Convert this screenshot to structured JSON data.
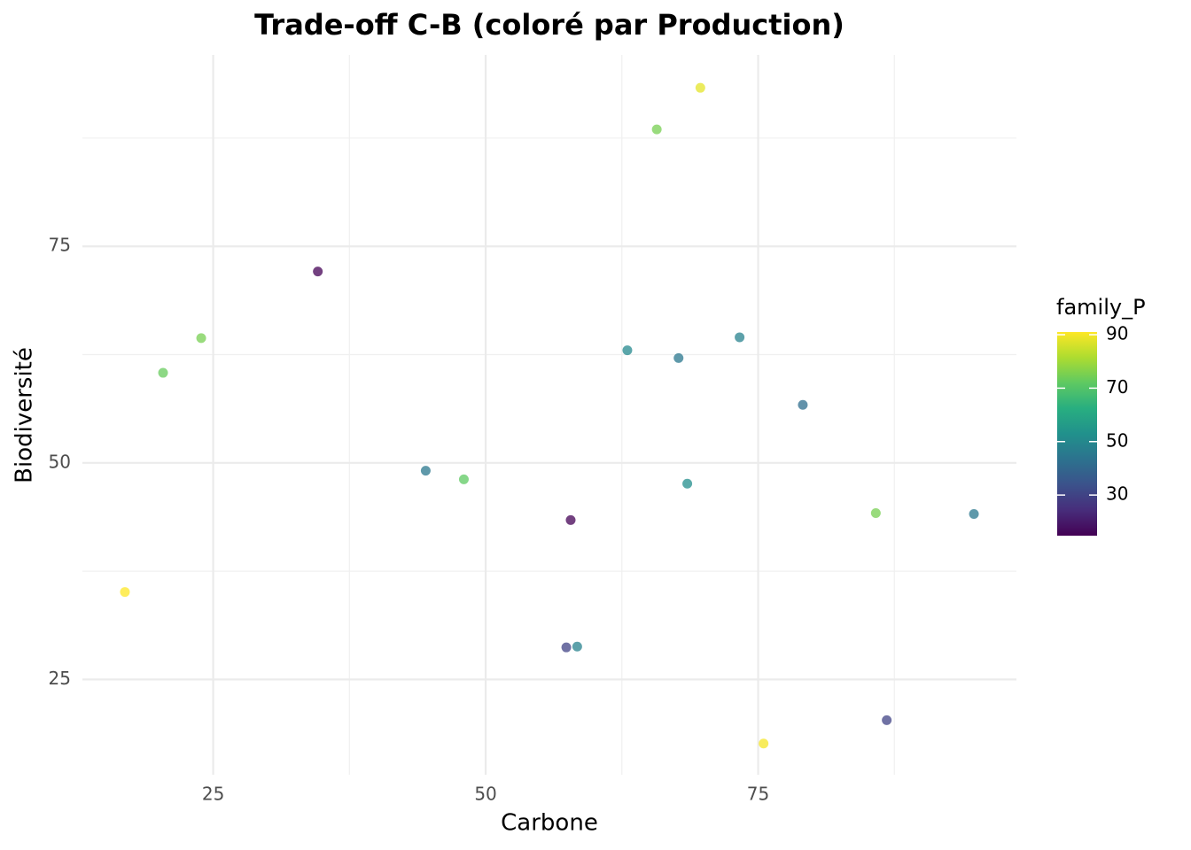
{
  "chart_data": {
    "type": "scatter",
    "title": "Trade-off C-B (coloré par Production)",
    "xlabel": "Carbone",
    "ylabel": "Biodiversité",
    "x": [
      69.7,
      65.7,
      34.6,
      23.9,
      20.4,
      63.0,
      67.7,
      73.3,
      79.1,
      44.5,
      48.0,
      68.5,
      57.8,
      85.8,
      94.8,
      16.9,
      57.4,
      58.4,
      86.8,
      75.5
    ],
    "values": [
      93.3,
      88.5,
      72.1,
      64.4,
      60.4,
      63.0,
      62.1,
      64.5,
      56.7,
      49.1,
      48.1,
      47.6,
      43.4,
      44.2,
      44.1,
      35.1,
      28.7,
      28.8,
      20.3,
      17.6
    ],
    "color_values": [
      88,
      75,
      15,
      75,
      73,
      50,
      45,
      48,
      42,
      45,
      72,
      52,
      15,
      75,
      45,
      92,
      30,
      48,
      30,
      90
    ],
    "xlim": [
      13,
      98.7
    ],
    "ylim": [
      14,
      97.1
    ],
    "xticks": [
      25,
      50,
      75
    ],
    "yticks": [
      25,
      50,
      75
    ],
    "xminor": [
      37.5,
      62.5,
      87.5
    ],
    "yminor": [
      37.5,
      62.5,
      87.5
    ],
    "grid": true,
    "colorbar": {
      "title": "family_P",
      "lim": [
        14.8,
        91
      ],
      "ticks": [
        30,
        50,
        70,
        90
      ],
      "colormap": [
        "#440154",
        "#472d7b",
        "#3b528b",
        "#2c728e",
        "#21918c",
        "#28ae80",
        "#5ec962",
        "#addc30",
        "#fde725"
      ]
    }
  }
}
